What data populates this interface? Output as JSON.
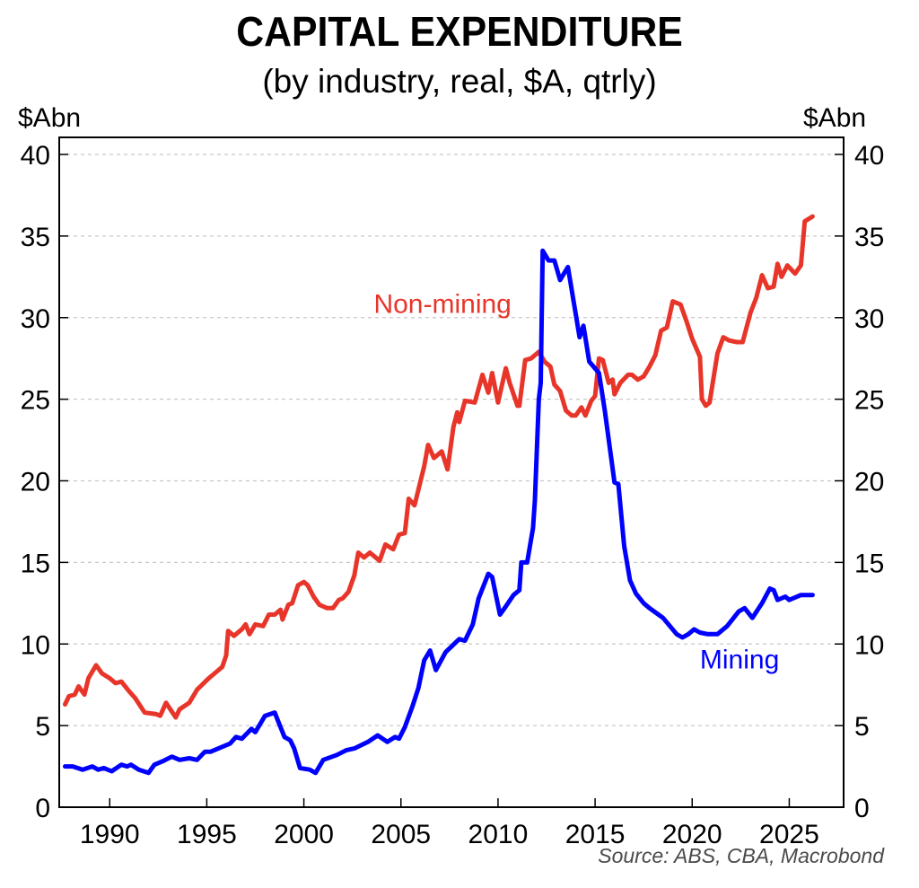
{
  "chart_data": {
    "type": "line",
    "title": "CAPITAL EXPENDITURE",
    "subtitle": "(by industry, real, $A, qtrly)",
    "ylabel_left": "$Abn",
    "ylabel_right": "$Abn",
    "xlabel": "",
    "source": "Source: ABS, CBA, Macrobond",
    "xlim": [
      1987.4,
      2027.8
    ],
    "ylim": [
      0,
      40
    ],
    "x_ticks": [
      1990,
      1995,
      2000,
      2005,
      2010,
      2015,
      2020,
      2025
    ],
    "y_ticks": [
      0,
      5,
      10,
      15,
      20,
      25,
      30,
      35,
      40
    ],
    "grid": "horizontal dotted",
    "legend": "inline labels",
    "series": [
      {
        "name": "Non-mining",
        "color": "#E8352A",
        "label_position": [
          2003.6,
          30.3
        ],
        "points": [
          [
            1987.7,
            6.3
          ],
          [
            1987.9,
            6.8
          ],
          [
            1988.2,
            6.9
          ],
          [
            1988.4,
            7.4
          ],
          [
            1988.7,
            6.9
          ],
          [
            1988.9,
            7.9
          ],
          [
            1989.3,
            8.7
          ],
          [
            1989.6,
            8.2
          ],
          [
            1990.0,
            7.9
          ],
          [
            1990.3,
            7.6
          ],
          [
            1990.6,
            7.7
          ],
          [
            1991.0,
            7.1
          ],
          [
            1991.3,
            6.7
          ],
          [
            1991.8,
            5.8
          ],
          [
            1992.4,
            5.7
          ],
          [
            1992.6,
            5.6
          ],
          [
            1992.9,
            6.4
          ],
          [
            1993.4,
            5.5
          ],
          [
            1993.6,
            6.0
          ],
          [
            1994.1,
            6.4
          ],
          [
            1994.5,
            7.2
          ],
          [
            1995.1,
            7.9
          ],
          [
            1995.4,
            8.2
          ],
          [
            1995.8,
            8.6
          ],
          [
            1996.0,
            9.3
          ],
          [
            1996.1,
            10.8
          ],
          [
            1996.4,
            10.5
          ],
          [
            1996.8,
            10.9
          ],
          [
            1997.0,
            11.2
          ],
          [
            1997.2,
            10.6
          ],
          [
            1997.5,
            11.2
          ],
          [
            1997.9,
            11.1
          ],
          [
            1998.2,
            11.8
          ],
          [
            1998.5,
            11.8
          ],
          [
            1998.8,
            12.1
          ],
          [
            1998.9,
            11.5
          ],
          [
            1999.2,
            12.4
          ],
          [
            1999.4,
            12.5
          ],
          [
            1999.7,
            13.6
          ],
          [
            2000.0,
            13.8
          ],
          [
            2000.2,
            13.6
          ],
          [
            2000.5,
            12.9
          ],
          [
            2000.8,
            12.4
          ],
          [
            2001.2,
            12.2
          ],
          [
            2001.5,
            12.2
          ],
          [
            2001.8,
            12.7
          ],
          [
            2002.0,
            12.8
          ],
          [
            2002.3,
            13.2
          ],
          [
            2002.6,
            14.2
          ],
          [
            2002.8,
            15.6
          ],
          [
            2003.1,
            15.3
          ],
          [
            2003.4,
            15.6
          ],
          [
            2003.9,
            15.1
          ],
          [
            2004.2,
            16.1
          ],
          [
            2004.6,
            15.8
          ],
          [
            2004.9,
            16.7
          ],
          [
            2005.2,
            16.8
          ],
          [
            2005.4,
            18.9
          ],
          [
            2005.7,
            18.5
          ],
          [
            2006.2,
            20.9
          ],
          [
            2006.4,
            22.2
          ],
          [
            2006.7,
            21.4
          ],
          [
            2007.1,
            21.8
          ],
          [
            2007.4,
            20.7
          ],
          [
            2007.7,
            23.3
          ],
          [
            2007.9,
            24.2
          ],
          [
            2008.0,
            23.6
          ],
          [
            2008.3,
            24.9
          ],
          [
            2008.8,
            24.8
          ],
          [
            2009.2,
            26.5
          ],
          [
            2009.5,
            25.4
          ],
          [
            2009.7,
            26.6
          ],
          [
            2010.0,
            24.8
          ],
          [
            2010.4,
            26.9
          ],
          [
            2010.6,
            26.0
          ],
          [
            2011.0,
            24.6
          ],
          [
            2011.1,
            24.6
          ],
          [
            2011.4,
            27.4
          ],
          [
            2011.7,
            27.5
          ],
          [
            2012.1,
            27.9
          ],
          [
            2012.4,
            27.3
          ],
          [
            2012.7,
            27.0
          ],
          [
            2012.9,
            25.9
          ],
          [
            2013.2,
            25.5
          ],
          [
            2013.5,
            24.3
          ],
          [
            2013.8,
            24.0
          ],
          [
            2014.0,
            24.0
          ],
          [
            2014.3,
            24.5
          ],
          [
            2014.5,
            24.0
          ],
          [
            2014.8,
            24.9
          ],
          [
            2015.0,
            25.2
          ],
          [
            2015.2,
            27.5
          ],
          [
            2015.4,
            27.4
          ],
          [
            2015.7,
            26.0
          ],
          [
            2015.9,
            26.2
          ],
          [
            2016.0,
            25.3
          ],
          [
            2016.3,
            26.0
          ],
          [
            2016.7,
            26.5
          ],
          [
            2016.9,
            26.5
          ],
          [
            2017.2,
            26.2
          ],
          [
            2017.5,
            26.4
          ],
          [
            2017.8,
            27.0
          ],
          [
            2018.1,
            27.7
          ],
          [
            2018.4,
            29.2
          ],
          [
            2018.7,
            29.4
          ],
          [
            2019.0,
            31.0
          ],
          [
            2019.4,
            30.8
          ],
          [
            2019.7,
            29.8
          ],
          [
            2020.0,
            28.7
          ],
          [
            2020.4,
            27.6
          ],
          [
            2020.5,
            25.0
          ],
          [
            2020.7,
            24.6
          ],
          [
            2020.9,
            24.8
          ],
          [
            2021.3,
            27.8
          ],
          [
            2021.6,
            28.8
          ],
          [
            2021.9,
            28.6
          ],
          [
            2022.3,
            28.5
          ],
          [
            2022.6,
            28.5
          ],
          [
            2023.0,
            30.3
          ],
          [
            2023.3,
            31.2
          ],
          [
            2023.6,
            32.6
          ],
          [
            2023.9,
            31.8
          ],
          [
            2024.2,
            31.9
          ],
          [
            2024.4,
            33.3
          ],
          [
            2024.6,
            32.5
          ],
          [
            2024.9,
            33.2
          ],
          [
            2025.3,
            32.7
          ],
          [
            2025.6,
            33.2
          ],
          [
            2025.8,
            35.9
          ],
          [
            2026.2,
            36.2
          ]
        ]
      },
      {
        "name": "Mining",
        "color": "#0000FF",
        "label_position": [
          2020.4,
          8.5
        ],
        "points": [
          [
            1987.7,
            2.5
          ],
          [
            1988.1,
            2.5
          ],
          [
            1988.6,
            2.3
          ],
          [
            1989.1,
            2.5
          ],
          [
            1989.4,
            2.3
          ],
          [
            1989.7,
            2.4
          ],
          [
            1990.1,
            2.2
          ],
          [
            1990.6,
            2.6
          ],
          [
            1990.9,
            2.5
          ],
          [
            1991.1,
            2.6
          ],
          [
            1991.5,
            2.3
          ],
          [
            1992.0,
            2.1
          ],
          [
            1992.3,
            2.6
          ],
          [
            1992.7,
            2.8
          ],
          [
            1993.2,
            3.1
          ],
          [
            1993.6,
            2.9
          ],
          [
            1994.1,
            3.0
          ],
          [
            1994.5,
            2.9
          ],
          [
            1994.9,
            3.4
          ],
          [
            1995.2,
            3.4
          ],
          [
            1995.6,
            3.6
          ],
          [
            1996.2,
            3.9
          ],
          [
            1996.5,
            4.3
          ],
          [
            1996.8,
            4.2
          ],
          [
            1997.3,
            4.8
          ],
          [
            1997.5,
            4.6
          ],
          [
            1998.0,
            5.6
          ],
          [
            1998.5,
            5.8
          ],
          [
            1998.8,
            4.9
          ],
          [
            1999.0,
            4.3
          ],
          [
            1999.3,
            4.1
          ],
          [
            1999.5,
            3.6
          ],
          [
            1999.8,
            2.4
          ],
          [
            2000.3,
            2.3
          ],
          [
            2000.6,
            2.1
          ],
          [
            2001.0,
            2.9
          ],
          [
            2001.7,
            3.2
          ],
          [
            2002.2,
            3.5
          ],
          [
            2002.6,
            3.6
          ],
          [
            2003.3,
            4.0
          ],
          [
            2003.8,
            4.4
          ],
          [
            2004.3,
            4.0
          ],
          [
            2004.7,
            4.3
          ],
          [
            2004.9,
            4.2
          ],
          [
            2005.2,
            4.9
          ],
          [
            2005.6,
            6.2
          ],
          [
            2005.9,
            7.3
          ],
          [
            2006.2,
            9.0
          ],
          [
            2006.5,
            9.6
          ],
          [
            2006.8,
            8.4
          ],
          [
            2007.3,
            9.5
          ],
          [
            2008.0,
            10.3
          ],
          [
            2008.3,
            10.2
          ],
          [
            2008.7,
            11.2
          ],
          [
            2009.0,
            12.8
          ],
          [
            2009.5,
            14.3
          ],
          [
            2009.7,
            14.1
          ],
          [
            2010.1,
            11.8
          ],
          [
            2010.4,
            12.3
          ],
          [
            2010.8,
            13.0
          ],
          [
            2011.1,
            13.3
          ],
          [
            2011.2,
            15.0
          ],
          [
            2011.5,
            15.0
          ],
          [
            2011.8,
            17.1
          ],
          [
            2011.9,
            18.8
          ],
          [
            2012.1,
            25.0
          ],
          [
            2012.2,
            26.0
          ],
          [
            2012.3,
            34.1
          ],
          [
            2012.6,
            33.5
          ],
          [
            2012.9,
            33.5
          ],
          [
            2013.2,
            32.3
          ],
          [
            2013.6,
            33.1
          ],
          [
            2014.2,
            28.8
          ],
          [
            2014.4,
            29.5
          ],
          [
            2014.7,
            27.3
          ],
          [
            2015.2,
            26.6
          ],
          [
            2015.5,
            24.3
          ],
          [
            2016.0,
            19.9
          ],
          [
            2016.2,
            19.8
          ],
          [
            2016.5,
            16.0
          ],
          [
            2016.8,
            13.9
          ],
          [
            2017.1,
            13.1
          ],
          [
            2017.5,
            12.5
          ],
          [
            2017.8,
            12.2
          ],
          [
            2018.5,
            11.6
          ],
          [
            2019.2,
            10.6
          ],
          [
            2019.5,
            10.4
          ],
          [
            2019.8,
            10.6
          ],
          [
            2020.1,
            10.9
          ],
          [
            2020.4,
            10.7
          ],
          [
            2020.8,
            10.6
          ],
          [
            2021.3,
            10.6
          ],
          [
            2021.8,
            11.1
          ],
          [
            2022.4,
            12.0
          ],
          [
            2022.7,
            12.2
          ],
          [
            2023.1,
            11.6
          ],
          [
            2023.6,
            12.5
          ],
          [
            2024.0,
            13.4
          ],
          [
            2024.2,
            13.3
          ],
          [
            2024.4,
            12.7
          ],
          [
            2024.8,
            12.9
          ],
          [
            2025.0,
            12.7
          ],
          [
            2025.6,
            13.0
          ],
          [
            2026.2,
            13.0
          ]
        ]
      }
    ]
  }
}
